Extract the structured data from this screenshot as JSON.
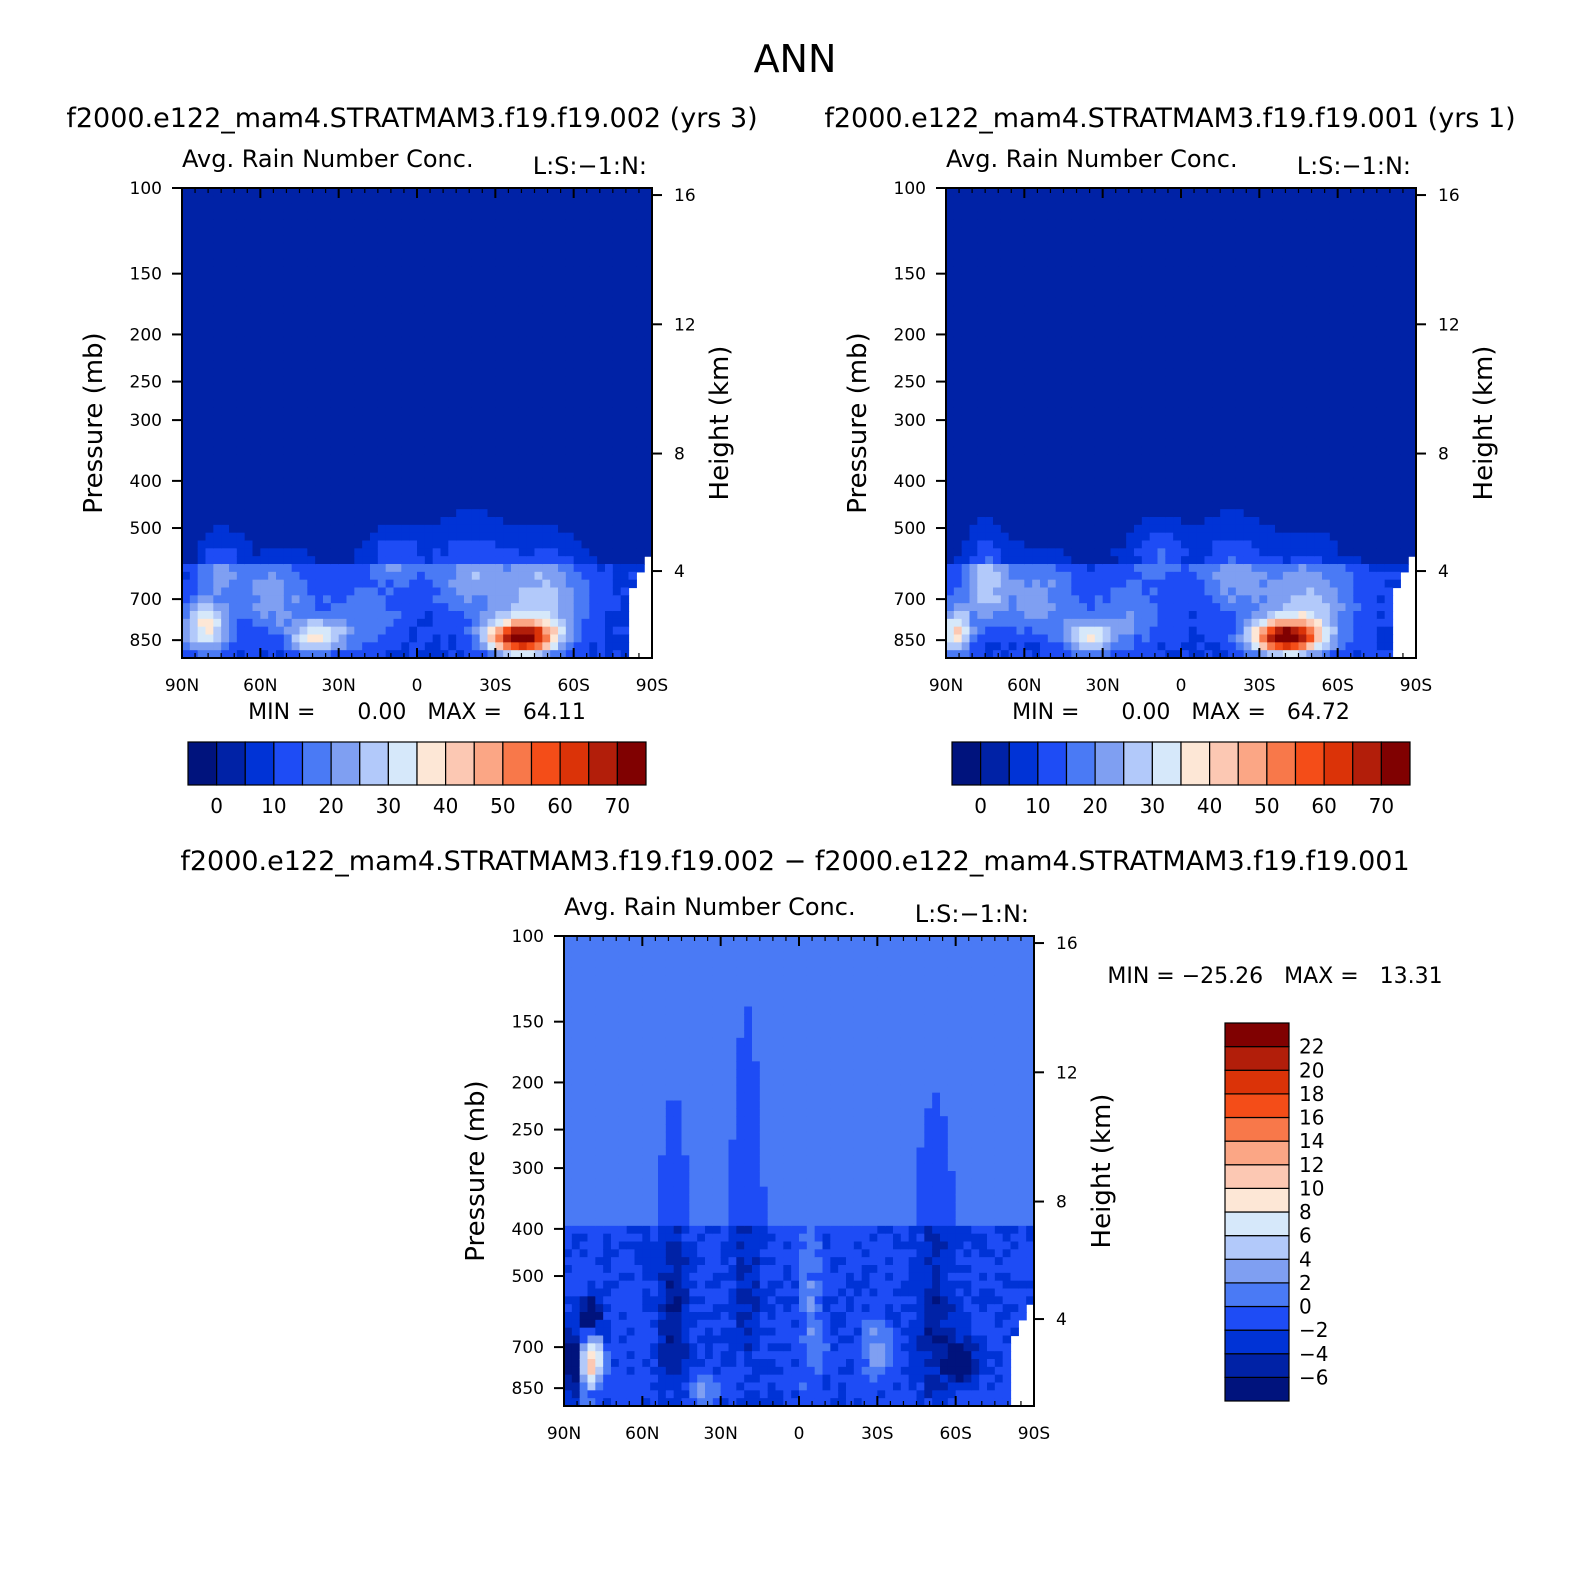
{
  "page": {
    "title": "ANN",
    "diff_title": "f2000.e122_mam4.STRATMAM3.f19.f19.002 − f2000.e122_mam4.STRATMAM3.f19.f19.001"
  },
  "colors": {
    "absolute": [
      "#00137d",
      "#0022a6",
      "#0033d6",
      "#1e4cf5",
      "#4a7af5",
      "#7f9ff2",
      "#b2c9fa",
      "#d6e8fa",
      "#fde7d6",
      "#fcc8b3",
      "#fba685",
      "#f8784a",
      "#f44d18",
      "#db3308",
      "#b21e0a",
      "#800101"
    ],
    "difference": [
      "#00137d",
      "#0022a6",
      "#0033d6",
      "#1e4cf5",
      "#4a7af5",
      "#7f9ff2",
      "#b2c9fa",
      "#d6e8fa",
      "#fde7d6",
      "#fcc8b3",
      "#fba685",
      "#f8784a",
      "#f44d18",
      "#db3308",
      "#b21e0a",
      "#800101"
    ]
  },
  "chart_data": [
    {
      "type": "heatmap",
      "id": "case1",
      "case_title": "f2000.e122_mam4.STRATMAM3.f19.f19.002 (yrs 3)",
      "title": "Avg. Rain Number Conc.",
      "units_label": "L:S:−1:N:",
      "xlabel": "",
      "ylabel": "Pressure (mb)",
      "y2label": "Height (km)",
      "x_ticks": [
        "90N",
        "60N",
        "30N",
        "0",
        "30S",
        "60S",
        "90S"
      ],
      "y_ticks": [
        100,
        150,
        200,
        250,
        300,
        400,
        500,
        700,
        850
      ],
      "y2_ticks": [
        4,
        8,
        12,
        16
      ],
      "ylim": [
        100,
        925
      ],
      "stats_text": "MIN =      0.00   MAX =   64.11",
      "min": 0.0,
      "max": 64.11,
      "colorbar_labels": [
        "0",
        "10",
        "20",
        "30",
        "40",
        "50",
        "60",
        "70"
      ],
      "field": {
        "lat": [
          90,
          85,
          80,
          75,
          70,
          65,
          60,
          55,
          50,
          45,
          40,
          35,
          30,
          25,
          20,
          15,
          10,
          5,
          0,
          -5,
          -10,
          -15,
          -20,
          -25,
          -30,
          -35,
          -40,
          -45,
          -50,
          -55,
          -60,
          -65,
          -70,
          -75,
          -80,
          -85,
          -90
        ],
        "pressure": [
          100,
          150,
          200,
          300,
          400,
          470,
          500,
          540,
          580,
          620,
          660,
          700,
          740,
          780,
          820,
          850,
          880,
          910
        ],
        "blobs": [
          {
            "lat": 81,
            "p": 800,
            "amp": 28,
            "wlat": 6,
            "wp": 70
          },
          {
            "lat": 75,
            "p": 600,
            "amp": 12,
            "wlat": 6,
            "wp": 60
          },
          {
            "lat": 38,
            "p": 840,
            "amp": 26,
            "wlat": 7,
            "wp": 45
          },
          {
            "lat": 55,
            "p": 700,
            "amp": 14,
            "wlat": 10,
            "wp": 90
          },
          {
            "lat": 8,
            "p": 570,
            "amp": 12,
            "wlat": 8,
            "wp": 50
          },
          {
            "lat": 20,
            "p": 760,
            "amp": 10,
            "wlat": 10,
            "wp": 90
          },
          {
            "lat": -20,
            "p": 620,
            "amp": 14,
            "wlat": 10,
            "wp": 90
          },
          {
            "lat": -40,
            "p": 840,
            "amp": 64.11,
            "wlat": 9,
            "wp": 45
          },
          {
            "lat": -48,
            "p": 700,
            "amp": 18,
            "wlat": 12,
            "wp": 110
          }
        ],
        "base": 9,
        "top": 600
      }
    },
    {
      "type": "heatmap",
      "id": "case2",
      "case_title": "f2000.e122_mam4.STRATMAM3.f19.f19.001 (yrs 1)",
      "title": "Avg. Rain Number Conc.",
      "units_label": "L:S:−1:N:",
      "xlabel": "",
      "ylabel": "Pressure (mb)",
      "y2label": "Height (km)",
      "x_ticks": [
        "90N",
        "60N",
        "30N",
        "0",
        "30S",
        "60S",
        "90S"
      ],
      "y_ticks": [
        100,
        150,
        200,
        250,
        300,
        400,
        500,
        700,
        850
      ],
      "y2_ticks": [
        4,
        8,
        12,
        16
      ],
      "ylim": [
        100,
        925
      ],
      "stats_text": "MIN =      0.00   MAX =   64.72",
      "min": 0.0,
      "max": 64.72,
      "colorbar_labels": [
        "0",
        "10",
        "20",
        "30",
        "40",
        "50",
        "60",
        "70"
      ],
      "field": {
        "blobs": [
          {
            "lat": 86,
            "p": 820,
            "amp": 30,
            "wlat": 4,
            "wp": 60
          },
          {
            "lat": 75,
            "p": 650,
            "amp": 18,
            "wlat": 6,
            "wp": 90
          },
          {
            "lat": 35,
            "p": 840,
            "amp": 24,
            "wlat": 7,
            "wp": 45
          },
          {
            "lat": 55,
            "p": 700,
            "amp": 14,
            "wlat": 10,
            "wp": 90
          },
          {
            "lat": 8,
            "p": 560,
            "amp": 12,
            "wlat": 8,
            "wp": 50
          },
          {
            "lat": 20,
            "p": 760,
            "amp": 10,
            "wlat": 10,
            "wp": 90
          },
          {
            "lat": -20,
            "p": 620,
            "amp": 14,
            "wlat": 10,
            "wp": 90
          },
          {
            "lat": -40,
            "p": 840,
            "amp": 64.72,
            "wlat": 9,
            "wp": 45
          },
          {
            "lat": -50,
            "p": 720,
            "amp": 18,
            "wlat": 12,
            "wp": 110
          }
        ],
        "base": 9,
        "top": 600
      }
    },
    {
      "type": "heatmap",
      "id": "diff",
      "title": "Avg. Rain Number Conc.",
      "units_label": "L:S:−1:N:",
      "xlabel": "",
      "ylabel": "Pressure (mb)",
      "y2label": "Height (km)",
      "x_ticks": [
        "90N",
        "60N",
        "30N",
        "0",
        "30S",
        "60S",
        "90S"
      ],
      "y_ticks": [
        100,
        150,
        200,
        250,
        300,
        400,
        500,
        700,
        850
      ],
      "y2_ticks": [
        4,
        8,
        12,
        16
      ],
      "ylim": [
        100,
        925
      ],
      "stats_text": "MIN = −25.26   MAX =   13.31",
      "min": -25.26,
      "max": 13.31,
      "colorbar_labels": [
        "22",
        "20",
        "18",
        "16",
        "14",
        "12",
        "10",
        "8",
        "6",
        "4",
        "2",
        "0",
        "−2",
        "−4",
        "−6"
      ],
      "field": {
        "blobs": [
          {
            "lat": 81,
            "p": 760,
            "amp": 12,
            "wlat": 2.5,
            "wp": 70
          },
          {
            "lat": 77,
            "p": 740,
            "amp": 7,
            "wlat": 2,
            "wp": 50
          },
          {
            "lat": 86,
            "p": 760,
            "amp": -10,
            "wlat": 2.5,
            "wp": 70
          },
          {
            "lat": 80,
            "p": 610,
            "amp": -8,
            "wlat": 3,
            "wp": 40
          },
          {
            "lat": 37,
            "p": 860,
            "amp": 6,
            "wlat": 3,
            "wp": 40
          },
          {
            "lat": -30,
            "p": 720,
            "amp": 6,
            "wlat": 3,
            "wp": 60
          },
          {
            "lat": -62,
            "p": 760,
            "amp": -9,
            "wlat": 4,
            "wp": 50
          },
          {
            "lat": 48,
            "p": 620,
            "amp": -4,
            "wlat": 4,
            "wp": 200
          },
          {
            "lat": 20,
            "p": 520,
            "amp": -3,
            "wlat": 4,
            "wp": 200
          },
          {
            "lat": -5,
            "p": 600,
            "amp": 3,
            "wlat": 3,
            "wp": 180
          },
          {
            "lat": -52,
            "p": 620,
            "amp": -4,
            "wlat": 5,
            "wp": 200
          }
        ],
        "base": 0,
        "top": 400
      }
    }
  ]
}
